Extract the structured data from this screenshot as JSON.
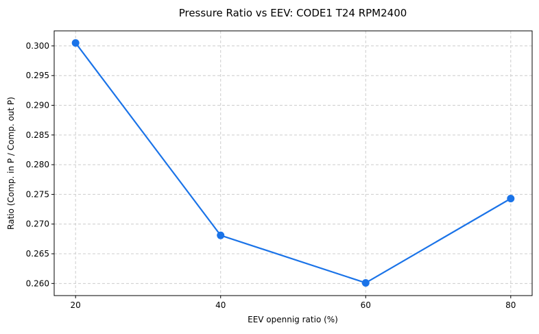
{
  "chart_data": {
    "type": "line",
    "title": "Pressure Ratio vs EEV: CODE1 T24 RPM2400",
    "xlabel": "EEV opennig ratio (%)",
    "ylabel": "Ratio (Comp. in P / Comp. out P)",
    "x": [
      20,
      40,
      60,
      80
    ],
    "series": [
      {
        "name": "Ratio",
        "values": [
          0.3005,
          0.2681,
          0.2601,
          0.2743
        ],
        "color": "#1a73e8"
      }
    ],
    "xticks": [
      "20",
      "40",
      "60",
      "80"
    ],
    "yticks": [
      "0.260",
      "0.265",
      "0.270",
      "0.275",
      "0.280",
      "0.285",
      "0.290",
      "0.295",
      "0.300"
    ],
    "xlim": [
      17.05,
      82.95
    ],
    "ylim": [
      0.25796,
      0.30253
    ],
    "grid": true
  }
}
